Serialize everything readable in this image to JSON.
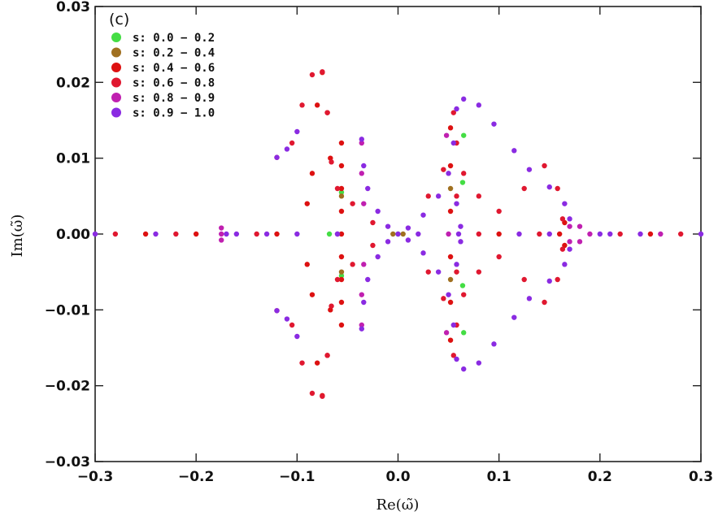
{
  "chart_data": {
    "type": "scatter",
    "panel_label": "(c)",
    "title": "",
    "xlabel": "Re(ω̃)",
    "ylabel": "Im(ω̃)",
    "xlim": [
      -0.3,
      0.3
    ],
    "ylim": [
      -0.03,
      0.03
    ],
    "xticks": [
      -0.3,
      -0.2,
      -0.1,
      0.0,
      0.1,
      0.2,
      0.3
    ],
    "xtick_labels": [
      "−0.3",
      "−0.2",
      "−0.1",
      "0.0",
      "0.1",
      "0.2",
      "0.3"
    ],
    "yticks": [
      -0.03,
      -0.02,
      -0.01,
      0.0,
      0.01,
      0.02,
      0.03
    ],
    "ytick_labels": [
      "−0.03",
      "−0.02",
      "−0.01",
      "0.00",
      "0.01",
      "0.02",
      "0.03"
    ],
    "grid": false,
    "legend_position": "top-left",
    "series": [
      {
        "name": "s: 0.0 − 0.2",
        "color": "#44dd44",
        "points": [
          [
            0.065,
            0.013
          ],
          [
            0.064,
            0.0068
          ],
          [
            0.064,
            -0.0068
          ],
          [
            0.065,
            -0.013
          ],
          [
            -0.056,
            0.0055
          ],
          [
            -0.056,
            -0.0055
          ],
          [
            -0.068,
            0.0
          ],
          [
            0.0,
            0.0
          ]
        ]
      },
      {
        "name": "s: 0.2 − 0.4",
        "color": "#a07020",
        "points": [
          [
            -0.056,
            0.005
          ],
          [
            -0.056,
            -0.005
          ],
          [
            0.052,
            0.006
          ],
          [
            0.052,
            -0.006
          ],
          [
            -0.005,
            0.0
          ],
          [
            0.005,
            0.0
          ]
        ]
      },
      {
        "name": "s: 0.4 − 0.6",
        "color": "#dd1111",
        "points": [
          [
            -0.067,
            0.01
          ],
          [
            -0.07,
            0.016
          ],
          [
            -0.075,
            0.0213
          ],
          [
            -0.08,
            0.017
          ],
          [
            -0.085,
            0.008
          ],
          [
            -0.09,
            0.004
          ],
          [
            -0.067,
            -0.01
          ],
          [
            -0.07,
            -0.016
          ],
          [
            -0.075,
            -0.0213
          ],
          [
            -0.08,
            -0.017
          ],
          [
            -0.085,
            -0.008
          ],
          [
            -0.09,
            -0.004
          ],
          [
            -0.056,
            0.0
          ],
          [
            -0.056,
            0.003
          ],
          [
            -0.056,
            0.006
          ],
          [
            -0.056,
            0.009
          ],
          [
            -0.056,
            0.012
          ],
          [
            -0.056,
            -0.003
          ],
          [
            -0.056,
            -0.006
          ],
          [
            -0.056,
            -0.009
          ],
          [
            -0.056,
            -0.012
          ],
          [
            0.052,
            0.003
          ],
          [
            0.052,
            0.009
          ],
          [
            0.052,
            0.014
          ],
          [
            0.052,
            -0.003
          ],
          [
            0.052,
            -0.009
          ],
          [
            0.052,
            -0.014
          ],
          [
            0.16,
            0.0
          ],
          [
            0.165,
            0.0015
          ],
          [
            0.165,
            -0.0015
          ],
          [
            -0.25,
            0.0
          ],
          [
            -0.2,
            0.0
          ],
          [
            -0.12,
            0.0
          ],
          [
            0.1,
            0.0
          ],
          [
            0.25,
            0.0
          ]
        ]
      },
      {
        "name": "s: 0.6 − 0.8",
        "color": "#e01830",
        "points": [
          [
            -0.12,
            0.0101
          ],
          [
            -0.105,
            0.012
          ],
          [
            -0.095,
            0.017
          ],
          [
            -0.085,
            0.021
          ],
          [
            -0.075,
            0.0214
          ],
          [
            -0.07,
            0.016
          ],
          [
            -0.066,
            0.0095
          ],
          [
            -0.12,
            -0.0101
          ],
          [
            -0.105,
            -0.012
          ],
          [
            -0.095,
            -0.017
          ],
          [
            -0.085,
            -0.021
          ],
          [
            -0.075,
            -0.0214
          ],
          [
            -0.07,
            -0.016
          ],
          [
            -0.066,
            -0.0095
          ],
          [
            -0.06,
            0.006
          ],
          [
            -0.06,
            -0.006
          ],
          [
            -0.045,
            0.004
          ],
          [
            -0.045,
            -0.004
          ],
          [
            -0.025,
            0.0015
          ],
          [
            -0.025,
            -0.0015
          ],
          [
            0.055,
            0.016
          ],
          [
            0.058,
            0.012
          ],
          [
            0.058,
            0.005
          ],
          [
            0.055,
            -0.016
          ],
          [
            0.058,
            -0.012
          ],
          [
            0.058,
            -0.005
          ],
          [
            0.065,
            0.008
          ],
          [
            0.08,
            0.005
          ],
          [
            0.1,
            0.003
          ],
          [
            0.125,
            0.006
          ],
          [
            0.145,
            0.009
          ],
          [
            0.158,
            0.006
          ],
          [
            0.163,
            0.002
          ],
          [
            0.065,
            -0.008
          ],
          [
            0.08,
            -0.005
          ],
          [
            0.1,
            -0.003
          ],
          [
            0.125,
            -0.006
          ],
          [
            0.145,
            -0.009
          ],
          [
            0.158,
            -0.006
          ],
          [
            0.163,
            -0.002
          ],
          [
            0.03,
            0.005
          ],
          [
            0.045,
            0.0085
          ],
          [
            0.03,
            -0.005
          ],
          [
            0.045,
            -0.0085
          ],
          [
            -0.28,
            0.0
          ],
          [
            -0.22,
            0.0
          ],
          [
            -0.14,
            0.0
          ],
          [
            0.08,
            0.0
          ],
          [
            0.14,
            0.0
          ],
          [
            0.22,
            0.0
          ],
          [
            0.28,
            0.0
          ]
        ]
      },
      {
        "name": "s: 0.8 − 0.9",
        "color": "#c020b0",
        "points": [
          [
            -0.175,
            0.0
          ],
          [
            -0.175,
            0.0008
          ],
          [
            -0.175,
            -0.0008
          ],
          [
            -0.036,
            0.012
          ],
          [
            -0.036,
            0.008
          ],
          [
            -0.034,
            0.004
          ],
          [
            -0.036,
            -0.012
          ],
          [
            -0.036,
            -0.008
          ],
          [
            -0.034,
            -0.004
          ],
          [
            0.048,
            0.013
          ],
          [
            0.048,
            -0.013
          ],
          [
            0.17,
            0.001
          ],
          [
            0.17,
            -0.001
          ],
          [
            0.18,
            0.001
          ],
          [
            0.18,
            -0.001
          ],
          [
            -0.06,
            0.0
          ],
          [
            0.05,
            0.0
          ],
          [
            0.19,
            0.0
          ],
          [
            0.26,
            0.0
          ]
        ]
      },
      {
        "name": "s: 0.9 − 1.0",
        "color": "#8a2be2",
        "points": [
          [
            -0.12,
            0.0101
          ],
          [
            -0.11,
            0.0112
          ],
          [
            -0.1,
            0.0135
          ],
          [
            -0.12,
            -0.0101
          ],
          [
            -0.11,
            -0.0112
          ],
          [
            -0.1,
            -0.0135
          ],
          [
            -0.036,
            0.0125
          ],
          [
            -0.034,
            0.009
          ],
          [
            -0.03,
            0.006
          ],
          [
            -0.02,
            0.003
          ],
          [
            -0.01,
            0.001
          ],
          [
            -0.036,
            -0.0125
          ],
          [
            -0.034,
            -0.009
          ],
          [
            -0.03,
            -0.006
          ],
          [
            -0.02,
            -0.003
          ],
          [
            -0.01,
            -0.001
          ],
          [
            0.0,
            0.0
          ],
          [
            0.01,
            0.0008
          ],
          [
            0.025,
            0.0025
          ],
          [
            0.04,
            0.005
          ],
          [
            0.05,
            0.008
          ],
          [
            0.055,
            0.012
          ],
          [
            0.058,
            0.0165
          ],
          [
            0.065,
            0.0178
          ],
          [
            0.08,
            0.017
          ],
          [
            0.095,
            0.0145
          ],
          [
            0.115,
            0.011
          ],
          [
            0.13,
            0.0085
          ],
          [
            0.15,
            0.0062
          ],
          [
            0.165,
            0.004
          ],
          [
            0.17,
            0.002
          ],
          [
            0.01,
            -0.0008
          ],
          [
            0.025,
            -0.0025
          ],
          [
            0.04,
            -0.005
          ],
          [
            0.05,
            -0.008
          ],
          [
            0.055,
            -0.012
          ],
          [
            0.058,
            -0.0165
          ],
          [
            0.065,
            -0.0178
          ],
          [
            0.08,
            -0.017
          ],
          [
            0.095,
            -0.0145
          ],
          [
            0.115,
            -0.011
          ],
          [
            0.13,
            -0.0085
          ],
          [
            0.15,
            -0.0062
          ],
          [
            0.165,
            -0.004
          ],
          [
            0.17,
            -0.002
          ],
          [
            0.058,
            0.004
          ],
          [
            0.058,
            -0.004
          ],
          [
            0.062,
            0.001
          ],
          [
            0.062,
            -0.001
          ],
          [
            -0.3,
            0.0
          ],
          [
            -0.24,
            0.0
          ],
          [
            -0.17,
            0.0
          ],
          [
            -0.16,
            0.0
          ],
          [
            -0.13,
            0.0
          ],
          [
            -0.1,
            0.0
          ],
          [
            -0.06,
            0.0
          ],
          [
            0.02,
            0.0
          ],
          [
            0.06,
            0.0
          ],
          [
            0.12,
            0.0
          ],
          [
            0.15,
            0.0
          ],
          [
            0.2,
            0.0
          ],
          [
            0.21,
            0.0
          ],
          [
            0.24,
            0.0
          ],
          [
            0.3,
            0.0
          ]
        ]
      }
    ]
  }
}
